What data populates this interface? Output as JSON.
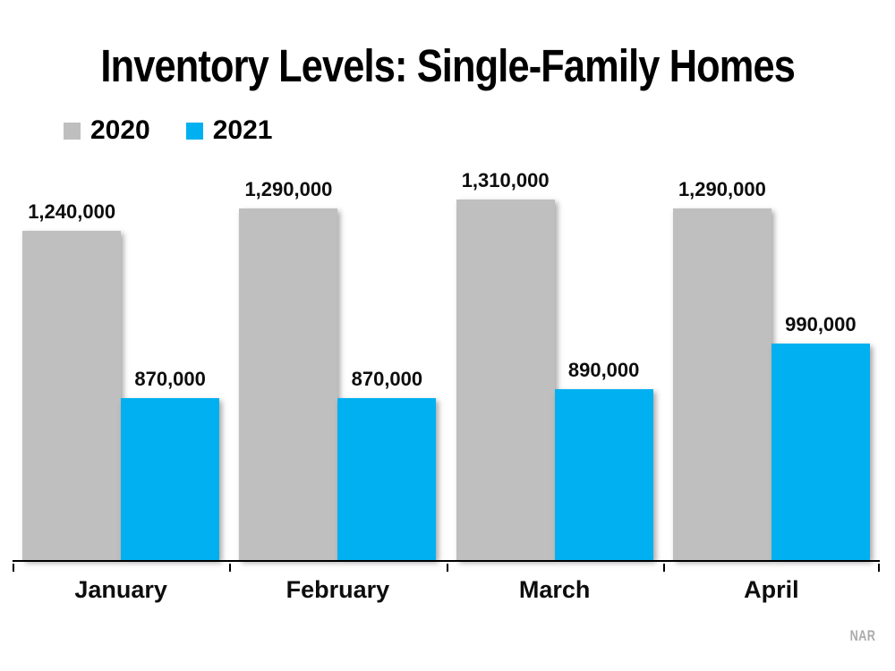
{
  "title": "Inventory Levels: Single-Family Homes",
  "source": "NAR",
  "legend": {
    "items": [
      {
        "label": "2020",
        "color": "#BFBFBF"
      },
      {
        "label": "2021",
        "color": "#00B0F0"
      }
    ]
  },
  "chart_data": {
    "type": "bar",
    "title": "Inventory Levels: Single-Family Homes",
    "categories": [
      "January",
      "February",
      "March",
      "April"
    ],
    "series": [
      {
        "name": "2020",
        "color": "#BFBFBF",
        "values": [
          1240000,
          1290000,
          1310000,
          1290000
        ]
      },
      {
        "name": "2021",
        "color": "#00B0F0",
        "values": [
          870000,
          870000,
          890000,
          990000
        ]
      }
    ],
    "xlabel": "",
    "ylabel": "",
    "ylim": [
      510000,
      1310000
    ],
    "grid": false,
    "axis_line_color": "#000000",
    "data_labels": true,
    "data_label_format": "#,##0",
    "legend_position": "top-left",
    "source_note": "NAR"
  }
}
